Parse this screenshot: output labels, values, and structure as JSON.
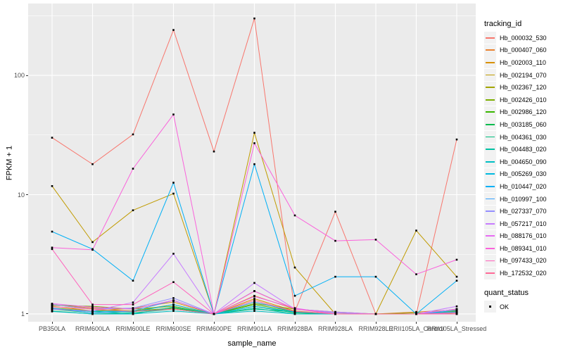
{
  "figure": {
    "xlabel": "sample_name",
    "ylabel": "FPKM + 1",
    "legend_title": "tracking_id",
    "quant_legend_title": "quant_status",
    "quant_legend_item": "OK"
  },
  "colors": {
    "panel_background": "#EBEBEB",
    "grid": "#FFFFFF",
    "tick_text": "#4D4D4D",
    "point": "#000000",
    "legend_key_background": "#F2F2F2"
  },
  "chart_data": {
    "type": "line",
    "title": "",
    "xlabel": "sample_name",
    "ylabel": "FPKM + 1",
    "y_scale": "log10",
    "ylim": [
      0.86,
      400
    ],
    "y_log_range": [
      -0.065,
      2.602
    ],
    "grid": "on",
    "legend_position": "right",
    "x_categories": [
      "PB350LA",
      "RRIM600LA",
      "RRIM600LE",
      "RRIM600SE",
      "RRIM600PE",
      "RRIM901LA",
      "RRIM928BA",
      "RRIM928LA",
      "RRIM928LE",
      "RRII105LA_Control",
      "RRII105LA_Stressed"
    ],
    "y_ticks": [
      {
        "label": "1",
        "value": 1
      },
      {
        "label": "10",
        "value": 10
      },
      {
        "label": "100",
        "value": 100
      }
    ],
    "y_minor": [
      3.162,
      31.62,
      316.2
    ],
    "point_shape": "square",
    "series": [
      {
        "name": "Hb_000032_530",
        "color": "#F8766D",
        "values": [
          30,
          18,
          32,
          240,
          23,
          300,
          1.05,
          7.2,
          1.0,
          1.0,
          29
        ]
      },
      {
        "name": "Hb_000407_060",
        "color": "#EA8331",
        "values": [
          1.2,
          1.12,
          1.1,
          1.3,
          1.0,
          1.42,
          1.1,
          1.02,
          1.0,
          1.04,
          1.08
        ]
      },
      {
        "name": "Hb_002003_110",
        "color": "#D89000",
        "values": [
          1.16,
          1.06,
          1.12,
          1.26,
          1.0,
          1.34,
          1.06,
          1.0,
          1.0,
          1.0,
          1.06
        ]
      },
      {
        "name": "Hb_002194_070",
        "color": "#C09B00",
        "values": [
          11.8,
          4.0,
          7.4,
          10.2,
          1.0,
          33,
          2.45,
          1.0,
          1.0,
          5.0,
          2.05
        ]
      },
      {
        "name": "Hb_002367_120",
        "color": "#A3A500",
        "values": [
          1.2,
          1.1,
          1.06,
          1.2,
          1.0,
          1.26,
          1.05,
          1.0,
          1.0,
          1.0,
          1.02
        ]
      },
      {
        "name": "Hb_002426_010",
        "color": "#7CAE00",
        "values": [
          1.18,
          1.16,
          1.1,
          1.16,
          1.0,
          1.22,
          1.1,
          1.04,
          1.0,
          1.02,
          1.05
        ]
      },
      {
        "name": "Hb_002986_120",
        "color": "#39B600",
        "values": [
          1.12,
          1.06,
          1.06,
          1.12,
          1.0,
          1.2,
          1.05,
          1.0,
          1.0,
          1.0,
          1.02
        ]
      },
      {
        "name": "Hb_003185_060",
        "color": "#00BB4E",
        "values": [
          1.1,
          1.02,
          1.05,
          1.1,
          1.0,
          1.16,
          1.02,
          1.0,
          1.0,
          1.0,
          1.0
        ]
      },
      {
        "name": "Hb_004361_030",
        "color": "#00BF7D",
        "values": [
          1.06,
          1.0,
          1.02,
          1.1,
          1.0,
          1.1,
          1.04,
          1.0,
          1.0,
          1.0,
          1.0
        ]
      },
      {
        "name": "Hb_004483_020",
        "color": "#00C1A3",
        "values": [
          1.1,
          1.05,
          1.0,
          1.14,
          1.0,
          1.12,
          1.0,
          1.0,
          1.0,
          1.0,
          1.04
        ]
      },
      {
        "name": "Hb_004650_090",
        "color": "#00BFC4",
        "values": [
          1.05,
          1.0,
          1.0,
          1.06,
          1.0,
          1.06,
          1.0,
          1.0,
          1.0,
          1.0,
          1.1
        ]
      },
      {
        "name": "Hb_005269_030",
        "color": "#00BAE0",
        "values": [
          1.1,
          1.06,
          1.04,
          1.2,
          1.0,
          1.16,
          1.04,
          1.0,
          1.0,
          1.0,
          1.07
        ]
      },
      {
        "name": "Hb_010447_020",
        "color": "#00B0F6",
        "values": [
          4.9,
          3.5,
          1.9,
          12.6,
          1.0,
          18,
          1.42,
          2.05,
          2.05,
          1.0,
          1.9
        ]
      },
      {
        "name": "Hb_010997_100",
        "color": "#35A2FF",
        "values": [
          1.12,
          1.02,
          1.06,
          1.3,
          1.0,
          1.26,
          1.05,
          1.0,
          1.0,
          1.0,
          1.04
        ]
      },
      {
        "name": "Hb_027337_070",
        "color": "#9590FF",
        "values": [
          1.2,
          1.1,
          1.12,
          1.36,
          1.0,
          1.56,
          1.1,
          1.02,
          1.0,
          1.0,
          1.1
        ]
      },
      {
        "name": "Hb_057217_010",
        "color": "#C77CFF",
        "values": [
          1.1,
          1.06,
          1.25,
          3.2,
          1.0,
          1.82,
          1.1,
          1.04,
          1.0,
          1.0,
          1.16
        ]
      },
      {
        "name": "Hb_088176_010",
        "color": "#E76BF3",
        "values": [
          1.22,
          1.14,
          1.1,
          1.3,
          1.0,
          1.4,
          1.12,
          1.0,
          1.0,
          1.0,
          1.1
        ]
      },
      {
        "name": "Hb_089341_010",
        "color": "#FA62DB",
        "values": [
          3.6,
          3.45,
          16.5,
          47,
          1.0,
          27,
          6.7,
          4.1,
          4.2,
          2.15,
          2.85
        ]
      },
      {
        "name": "Hb_097433_020",
        "color": "#FF62BC",
        "values": [
          3.5,
          1.2,
          1.2,
          1.85,
          1.0,
          1.55,
          1.1,
          1.0,
          1.0,
          1.0,
          1.0
        ]
      },
      {
        "name": "Hb_172532_020",
        "color": "#FF6A98",
        "values": [
          1.15,
          1.1,
          1.05,
          1.1,
          1.0,
          1.3,
          1.05,
          1.0,
          1.0,
          1.0,
          1.02
        ]
      }
    ]
  }
}
